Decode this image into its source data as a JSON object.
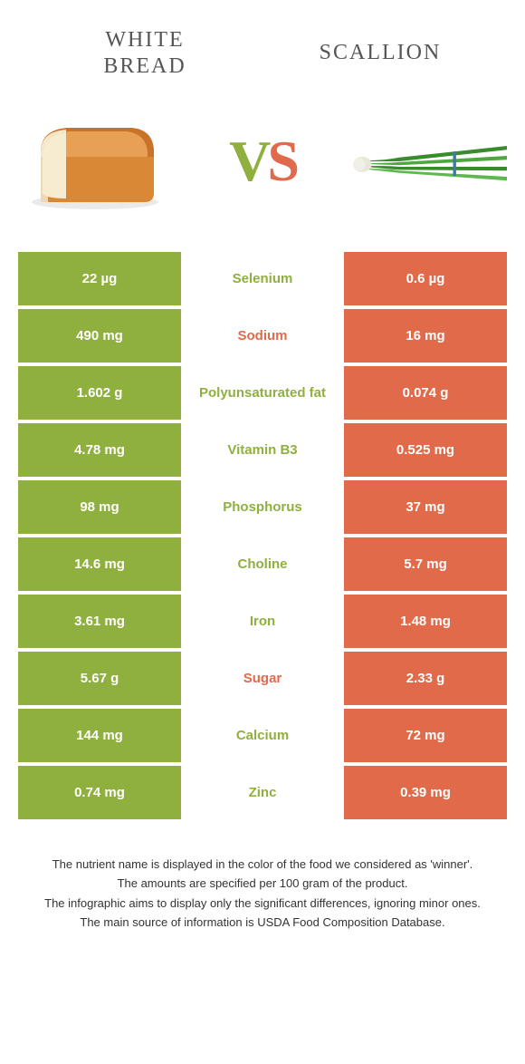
{
  "colors": {
    "left": "#8fb03e",
    "right": "#e16a4a",
    "mid_left_text": "#8fb03e",
    "mid_right_text": "#e16a4a",
    "title_text": "#555555",
    "footer_text": "#333333",
    "white": "#ffffff"
  },
  "header": {
    "left_title_line1": "WHITE",
    "left_title_line2": "BREAD",
    "right_title": "SCALLION",
    "vs_v": "V",
    "vs_s": "S"
  },
  "rows": [
    {
      "left": "22 µg",
      "label": "Selenium",
      "right": "0.6 µg",
      "winner": "left"
    },
    {
      "left": "490 mg",
      "label": "Sodium",
      "right": "16 mg",
      "winner": "right"
    },
    {
      "left": "1.602 g",
      "label": "Polyunsaturated fat",
      "right": "0.074 g",
      "winner": "left"
    },
    {
      "left": "4.78 mg",
      "label": "Vitamin B3",
      "right": "0.525 mg",
      "winner": "left"
    },
    {
      "left": "98 mg",
      "label": "Phosphorus",
      "right": "37 mg",
      "winner": "left"
    },
    {
      "left": "14.6 mg",
      "label": "Choline",
      "right": "5.7 mg",
      "winner": "left"
    },
    {
      "left": "3.61 mg",
      "label": "Iron",
      "right": "1.48 mg",
      "winner": "left"
    },
    {
      "left": "5.67 g",
      "label": "Sugar",
      "right": "2.33 g",
      "winner": "right"
    },
    {
      "left": "144 mg",
      "label": "Calcium",
      "right": "72 mg",
      "winner": "left"
    },
    {
      "left": "0.74 mg",
      "label": "Zinc",
      "right": "0.39 mg",
      "winner": "left"
    }
  ],
  "footer": {
    "line1": "The nutrient name is displayed in the color of the food we considered as 'winner'.",
    "line2": "The amounts are specified per 100 gram of the product.",
    "line3": "The infographic aims to display only the significant differences, ignoring minor ones.",
    "line4": "The main source of information is USDA Food Composition Database."
  }
}
